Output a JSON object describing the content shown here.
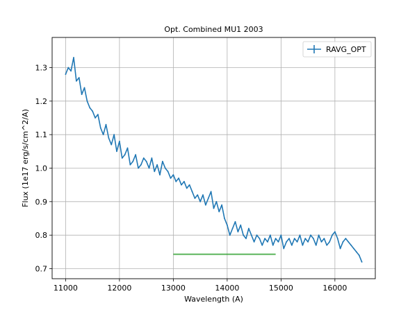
{
  "chart_data": {
    "type": "line",
    "title": "Opt. Combined MU1 2003",
    "xlabel": "Wavelength (A)",
    "ylabel": "Flux (1e17 erg/s/cm^2/A)",
    "xlim": [
      10750,
      16750
    ],
    "ylim": [
      0.67,
      1.39
    ],
    "xticks": [
      11000,
      12000,
      13000,
      14000,
      15000,
      16000
    ],
    "yticks": [
      0.7,
      0.8,
      0.9,
      1.0,
      1.1,
      1.2,
      1.3
    ],
    "grid": true,
    "legend": {
      "placement": "top-right",
      "entries": [
        "RAVG_OPT"
      ]
    },
    "series": [
      {
        "name": "RAVG_OPT",
        "color": "#1f77b4",
        "style": "errorbar-line",
        "x": [
          11000,
          11050,
          11100,
          11150,
          11200,
          11250,
          11300,
          11350,
          11400,
          11450,
          11500,
          11550,
          11600,
          11650,
          11700,
          11750,
          11800,
          11850,
          11900,
          11950,
          12000,
          12050,
          12100,
          12150,
          12200,
          12250,
          12300,
          12350,
          12400,
          12450,
          12500,
          12550,
          12600,
          12650,
          12700,
          12750,
          12800,
          12850,
          12900,
          12950,
          13000,
          13050,
          13100,
          13150,
          13200,
          13250,
          13300,
          13350,
          13400,
          13450,
          13500,
          13550,
          13600,
          13650,
          13700,
          13750,
          13800,
          13850,
          13900,
          13950,
          14000,
          14050,
          14100,
          14150,
          14200,
          14250,
          14300,
          14350,
          14400,
          14450,
          14500,
          14550,
          14600,
          14650,
          14700,
          14750,
          14800,
          14850,
          14900,
          14950,
          15000,
          15050,
          15100,
          15150,
          15200,
          15250,
          15300,
          15350,
          15400,
          15450,
          15500,
          15550,
          15600,
          15650,
          15700,
          15750,
          15800,
          15850,
          15900,
          15950,
          16000,
          16050,
          16100,
          16150,
          16200,
          16250,
          16300,
          16350,
          16400,
          16450,
          16500
        ],
        "y": [
          1.28,
          1.3,
          1.29,
          1.33,
          1.26,
          1.27,
          1.22,
          1.24,
          1.2,
          1.18,
          1.17,
          1.15,
          1.16,
          1.12,
          1.1,
          1.13,
          1.09,
          1.07,
          1.1,
          1.05,
          1.08,
          1.03,
          1.04,
          1.06,
          1.01,
          1.02,
          1.04,
          1.0,
          1.01,
          1.03,
          1.02,
          1.0,
          1.03,
          0.99,
          1.01,
          0.98,
          1.02,
          1.0,
          0.99,
          0.97,
          0.98,
          0.96,
          0.97,
          0.95,
          0.96,
          0.94,
          0.95,
          0.93,
          0.91,
          0.92,
          0.9,
          0.92,
          0.89,
          0.91,
          0.93,
          0.88,
          0.9,
          0.87,
          0.89,
          0.85,
          0.83,
          0.8,
          0.82,
          0.84,
          0.81,
          0.83,
          0.8,
          0.79,
          0.82,
          0.8,
          0.78,
          0.8,
          0.79,
          0.77,
          0.79,
          0.78,
          0.8,
          0.77,
          0.79,
          0.78,
          0.8,
          0.76,
          0.78,
          0.79,
          0.77,
          0.79,
          0.78,
          0.8,
          0.77,
          0.79,
          0.78,
          0.8,
          0.79,
          0.77,
          0.8,
          0.78,
          0.79,
          0.77,
          0.78,
          0.8,
          0.81,
          0.79,
          0.76,
          0.78,
          0.79,
          0.78,
          0.77,
          0.76,
          0.75,
          0.74,
          0.72
        ]
      },
      {
        "color": "#2ca02c",
        "style": "segment",
        "x": [
          13000,
          14900
        ],
        "y": [
          0.743,
          0.743
        ]
      }
    ]
  }
}
